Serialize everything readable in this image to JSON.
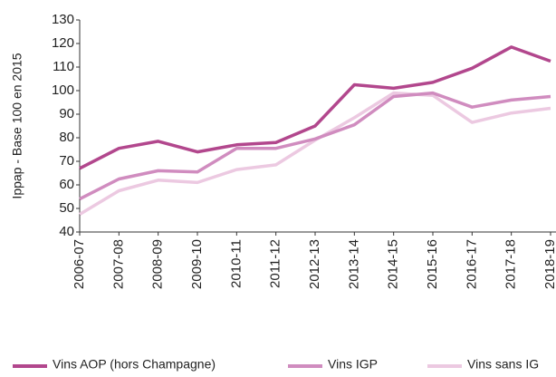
{
  "chart_data": {
    "type": "line",
    "y_label": "Ippap - Base 100 en 2015",
    "categories": [
      "2006-07",
      "2007-08",
      "2008-09",
      "2009-10",
      "2010-11",
      "2011-12",
      "2012-13",
      "2013-14",
      "2014-15",
      "2015-16",
      "2016-17",
      "2017-18",
      "2018-19"
    ],
    "series": [
      {
        "name": "Vins AOP (hors Champagne)",
        "color": "#b2478d",
        "values": [
          67,
          75.5,
          78.5,
          74,
          77,
          78,
          85,
          102.5,
          101,
          103.5,
          109.5,
          118.5,
          112.5
        ]
      },
      {
        "name": "Vins IGP",
        "color": "#d08cbf",
        "values": [
          54,
          62.5,
          66,
          65.5,
          75.5,
          75.5,
          79.5,
          85.5,
          97.5,
          99,
          93,
          96,
          97.5
        ]
      },
      {
        "name": "Vins sans IG",
        "color": "#ecc9e1",
        "values": [
          47.5,
          57.5,
          62,
          61,
          66.5,
          68.5,
          79,
          88.5,
          99,
          98,
          86.5,
          90.5,
          92.5
        ]
      }
    ],
    "ylim": [
      40,
      130
    ],
    "yticks": [
      40,
      50,
      60,
      70,
      80,
      90,
      100,
      110,
      120,
      130
    ]
  }
}
